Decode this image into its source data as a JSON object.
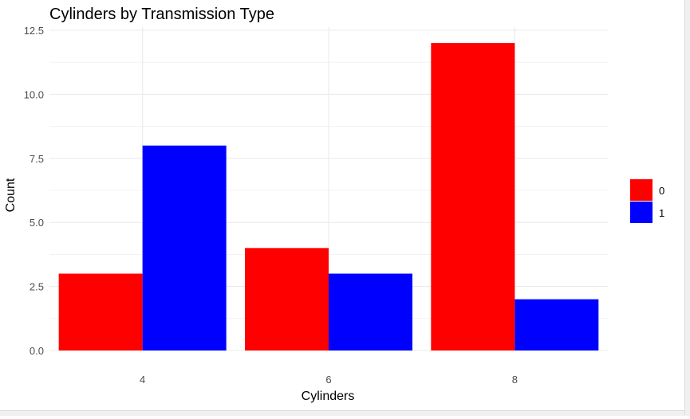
{
  "chart_data": {
    "type": "bar",
    "title": "Cylinders by Transmission Type",
    "xlabel": "Cylinders",
    "ylabel": "Count",
    "categories": [
      "4",
      "6",
      "8"
    ],
    "series": [
      {
        "name": "0",
        "values": [
          3,
          4,
          12
        ],
        "color": "#ff0000"
      },
      {
        "name": "1",
        "values": [
          8,
          3,
          2
        ],
        "color": "#0000ff"
      }
    ],
    "ylim": [
      0,
      12.5
    ],
    "yticks": [
      "0.0",
      "2.5",
      "5.0",
      "7.5",
      "10.0",
      "12.5"
    ],
    "grid": true,
    "legend": "right",
    "background": "#ffffff",
    "gridColor": "#ebebeb",
    "textColor": "#000000",
    "tickColor": "#4d4d4d"
  }
}
